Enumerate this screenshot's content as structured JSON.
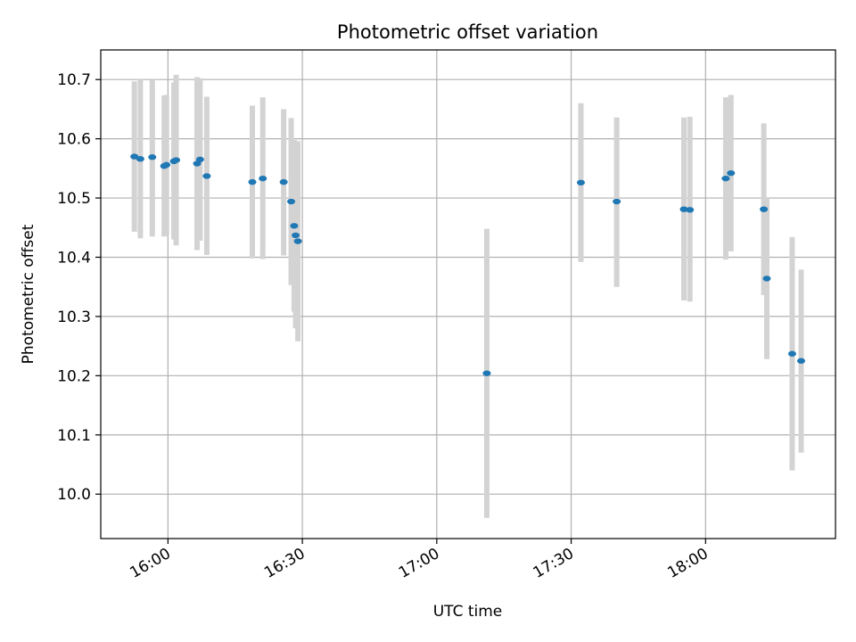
{
  "chart_data": {
    "type": "scatter",
    "title": "Photometric offset variation",
    "xlabel": "UTC time",
    "ylabel": "Photometric offset",
    "xlim": [
      "15:45",
      "18:29"
    ],
    "ylim": [
      9.925,
      10.75
    ],
    "x_ticks": [
      "16:00",
      "16:30",
      "17:00",
      "17:30",
      "18:00"
    ],
    "y_ticks": [
      10.0,
      10.1,
      10.2,
      10.3,
      10.4,
      10.5,
      10.6,
      10.7
    ],
    "y_tick_labels": [
      "10.0",
      "10.1",
      "10.2",
      "10.3",
      "10.4",
      "10.5",
      "10.6",
      "10.7"
    ],
    "grid": true,
    "colors": {
      "points": "#1f77b4",
      "errorbars": "#d3d3d3",
      "grid": "#b0b0b0"
    },
    "points": [
      {
        "x": "15:52:30",
        "y": 10.57,
        "ylo": 10.443,
        "yhi": 10.697
      },
      {
        "x": "15:53:50",
        "y": 10.566,
        "ylo": 10.432,
        "yhi": 10.7
      },
      {
        "x": "15:56:30",
        "y": 10.569,
        "ylo": 10.435,
        "yhi": 10.7
      },
      {
        "x": "15:59:10",
        "y": 10.554,
        "ylo": 10.435,
        "yhi": 10.673
      },
      {
        "x": "15:59:40",
        "y": 10.556,
        "ylo": 10.438,
        "yhi": 10.674
      },
      {
        "x": "16:01:20",
        "y": 10.562,
        "ylo": 10.43,
        "yhi": 10.695
      },
      {
        "x": "16:01:50",
        "y": 10.564,
        "ylo": 10.42,
        "yhi": 10.708
      },
      {
        "x": "16:06:30",
        "y": 10.558,
        "ylo": 10.412,
        "yhi": 10.704
      },
      {
        "x": "16:07:10",
        "y": 10.565,
        "ylo": 10.428,
        "yhi": 10.702
      },
      {
        "x": "16:08:40",
        "y": 10.537,
        "ylo": 10.404,
        "yhi": 10.671
      },
      {
        "x": "16:18:50",
        "y": 10.527,
        "ylo": 10.398,
        "yhi": 10.656
      },
      {
        "x": "16:21:10",
        "y": 10.533,
        "ylo": 10.397,
        "yhi": 10.67
      },
      {
        "x": "16:25:50",
        "y": 10.527,
        "ylo": 10.403,
        "yhi": 10.65
      },
      {
        "x": "16:27:30",
        "y": 10.494,
        "ylo": 10.353,
        "yhi": 10.635
      },
      {
        "x": "16:28:10",
        "y": 10.453,
        "ylo": 10.308,
        "yhi": 10.598
      },
      {
        "x": "16:28:30",
        "y": 10.437,
        "ylo": 10.28,
        "yhi": 10.594
      },
      {
        "x": "16:29:00",
        "y": 10.427,
        "ylo": 10.258,
        "yhi": 10.596
      },
      {
        "x": "17:11:10",
        "y": 10.204,
        "ylo": 9.96,
        "yhi": 10.448
      },
      {
        "x": "17:32:10",
        "y": 10.526,
        "ylo": 10.392,
        "yhi": 10.66
      },
      {
        "x": "17:40:10",
        "y": 10.494,
        "ylo": 10.35,
        "yhi": 10.636
      },
      {
        "x": "17:55:10",
        "y": 10.481,
        "ylo": 10.327,
        "yhi": 10.636
      },
      {
        "x": "17:56:30",
        "y": 10.48,
        "ylo": 10.325,
        "yhi": 10.637
      },
      {
        "x": "18:04:30",
        "y": 10.533,
        "ylo": 10.396,
        "yhi": 10.67
      },
      {
        "x": "18:05:40",
        "y": 10.542,
        "ylo": 10.41,
        "yhi": 10.674
      },
      {
        "x": "18:13:00",
        "y": 10.481,
        "ylo": 10.336,
        "yhi": 10.626
      },
      {
        "x": "18:13:40",
        "y": 10.364,
        "ylo": 10.228,
        "yhi": 10.5
      },
      {
        "x": "18:19:20",
        "y": 10.237,
        "ylo": 10.04,
        "yhi": 10.434
      },
      {
        "x": "18:21:20",
        "y": 10.225,
        "ylo": 10.07,
        "yhi": 10.379
      }
    ]
  }
}
